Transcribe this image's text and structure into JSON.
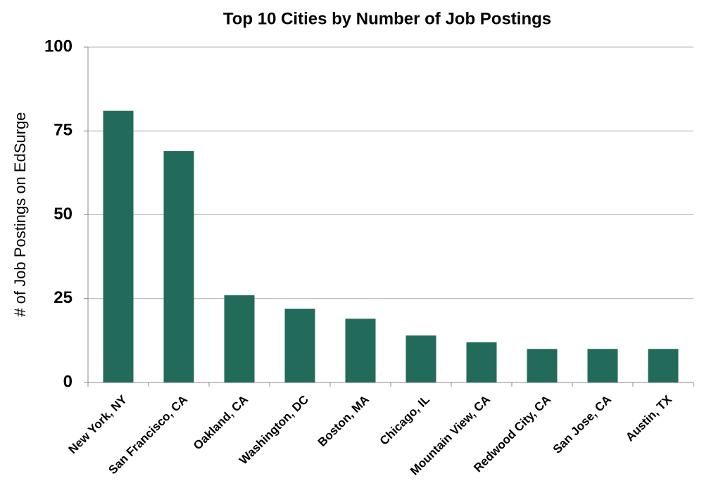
{
  "chart_data": {
    "type": "bar",
    "title": "Top 10 Cities by Number of Job Postings",
    "y_label": "# of Job Postings on EdSurge",
    "categories": [
      "New York, NY",
      "San Francisco, CA",
      "Oakland, CA",
      "Washington, DC",
      "Boston, MA",
      "Chicago, IL",
      "Mountain View, CA",
      "Redwood City, CA",
      "San Jose, CA",
      "Austin, TX"
    ],
    "values": [
      81,
      69,
      26,
      22,
      19,
      14,
      12,
      10,
      10,
      10
    ],
    "color": "#226b5a",
    "ylim": [
      0,
      100
    ],
    "yticks": [
      0,
      25,
      50,
      75,
      100
    ],
    "grid": true
  }
}
